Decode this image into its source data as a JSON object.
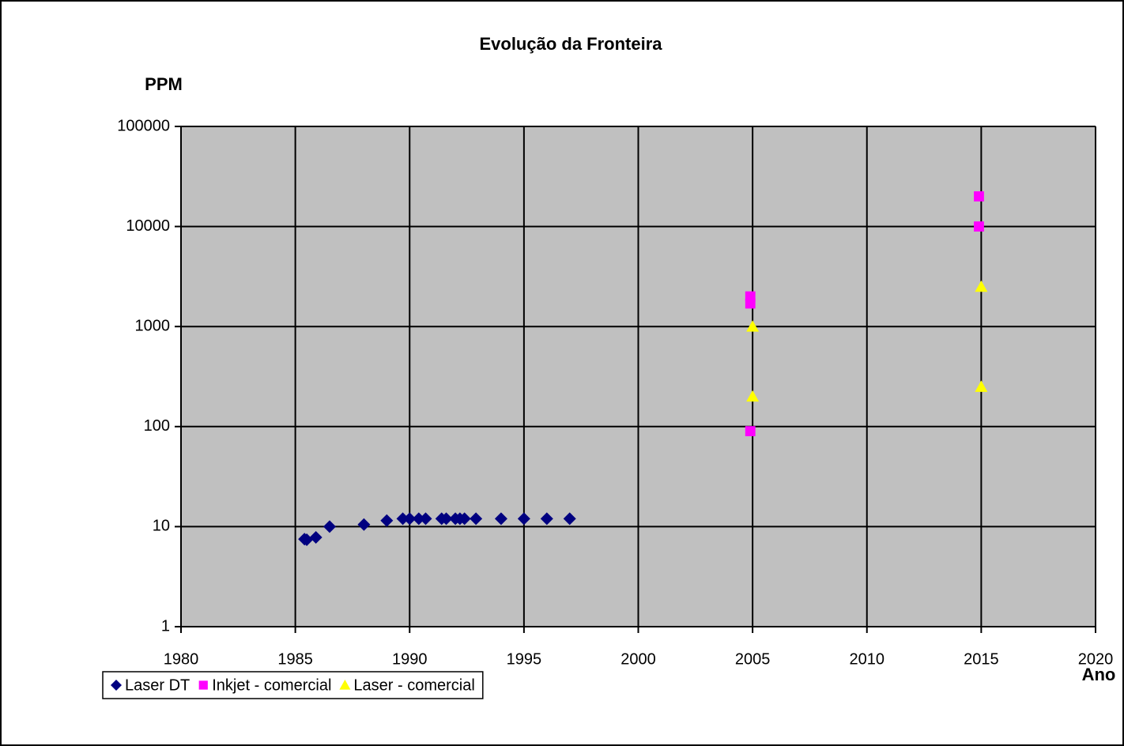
{
  "chart_data": {
    "type": "scatter",
    "title": "Evolução da Fronteira",
    "y_label": "PPM",
    "x_label": "Ano",
    "xlim": [
      1980,
      2020
    ],
    "xticks": [
      1980,
      1985,
      1990,
      1995,
      2000,
      2005,
      2010,
      2015,
      2020
    ],
    "ylim": [
      1,
      100000
    ],
    "yticks": [
      1,
      10,
      100,
      1000,
      10000,
      100000
    ],
    "y_scale": "log",
    "grid": true,
    "background": "#c0c0c0",
    "legend": "bottom-left",
    "series": [
      {
        "name": "Laser DT",
        "color": "#000080",
        "marker": "diamond",
        "x": [
          1985.4,
          1985.5,
          1985.9,
          1986.5,
          1988,
          1989,
          1989.7,
          1990,
          1990.4,
          1990.7,
          1991.4,
          1991.6,
          1992,
          1992.2,
          1992.4,
          1992.9,
          1994,
          1995,
          1996,
          1997
        ],
        "values": [
          7.5,
          7.4,
          7.8,
          10,
          10.5,
          11.5,
          12,
          12,
          12,
          12,
          12,
          12,
          12,
          12,
          12,
          12,
          12,
          12,
          12,
          12
        ]
      },
      {
        "name": "Inkjet - comercial",
        "color": "#ff00ff",
        "marker": "square",
        "x": [
          2004.9,
          2004.9,
          2004.9,
          2014.9,
          2014.9
        ],
        "values": [
          90,
          1700,
          2000,
          20000,
          10000
        ]
      },
      {
        "name": "Laser - comercial",
        "color": "#ffff00",
        "marker": "triangle",
        "x": [
          2005,
          2005,
          2015,
          2015
        ],
        "values": [
          1000,
          200,
          2500,
          250
        ]
      }
    ]
  }
}
